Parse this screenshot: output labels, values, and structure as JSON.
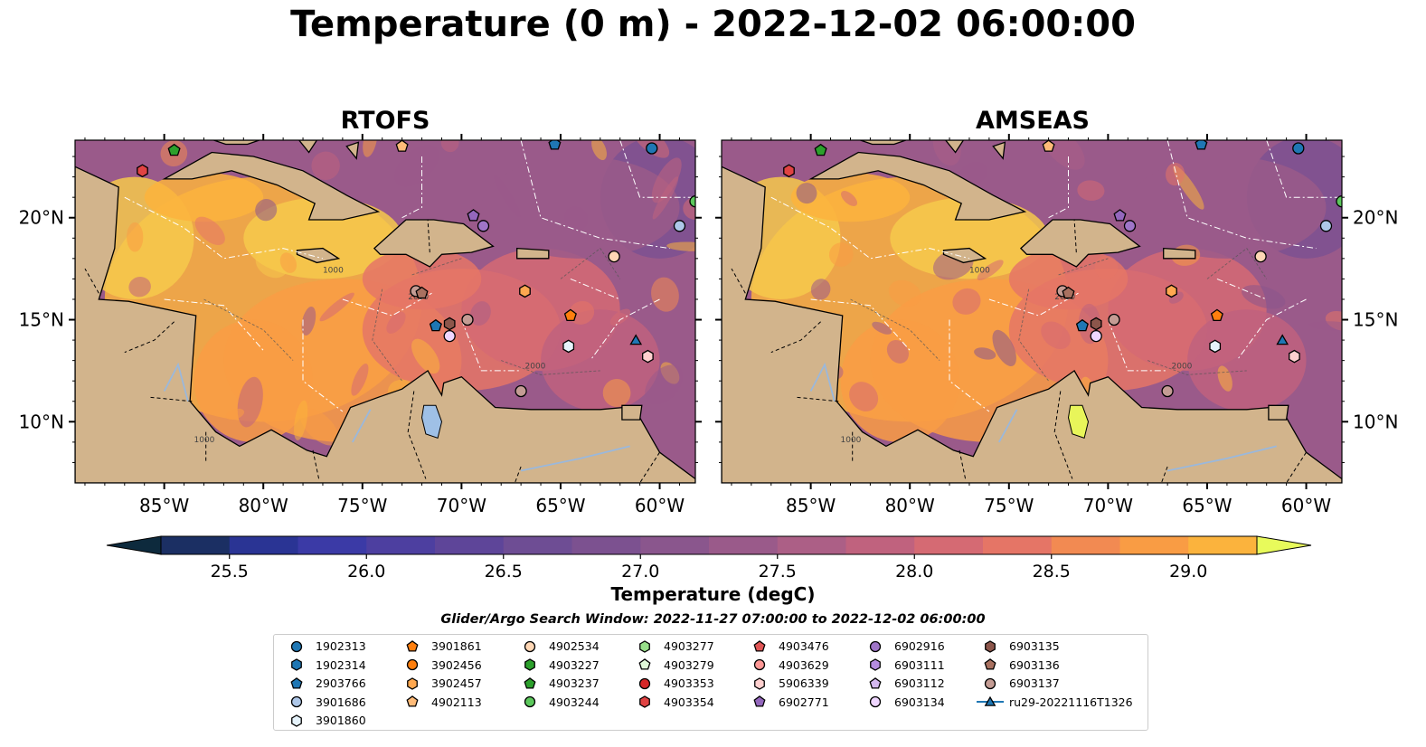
{
  "title": "Temperature (0 m) - 2022-12-02 06:00:00",
  "panels": [
    {
      "title": "RTOFS"
    },
    {
      "title": "AMSEAS"
    }
  ],
  "colorbar": {
    "label": "Temperature (degC)",
    "min": 25.25,
    "max": 29.25,
    "step": 0.25,
    "ticks": [
      "25.5",
      "26.0",
      "26.5",
      "27.0",
      "27.5",
      "28.0",
      "28.5",
      "29.0"
    ],
    "extend": "both",
    "colormap": "thermal",
    "colors": [
      "#0d2a3d",
      "#1b2f63",
      "#2a3494",
      "#3b3aa6",
      "#4d3fa0",
      "#5e4599",
      "#6e4d94",
      "#7c5190",
      "#8a568d",
      "#9a5a8a",
      "#ac5f86",
      "#c0627e",
      "#d56a73",
      "#e57566",
      "#f28a52",
      "#f99c44",
      "#fbb33d",
      "#f6c94b",
      "#eadf5c",
      "#e8fa5b"
    ]
  },
  "search_window": "Glider/Argo Search Window: 2022-11-27 07:00:00 to 2022-12-02 06:00:00",
  "chart_data": [
    {
      "type": "map",
      "title": "RTOFS",
      "variable": "Temperature (0 m)",
      "units": "degC",
      "x_ticks": [
        "85°W",
        "80°W",
        "75°W",
        "70°W",
        "65°W",
        "60°W"
      ],
      "y_ticks": [
        "20°N",
        "15°N",
        "10°N"
      ],
      "xlim": [
        -89.5,
        -58.2
      ],
      "ylim": [
        7.0,
        23.8
      ],
      "grid": false,
      "bathymetry_contour_labels": [
        "1000",
        "2000"
      ],
      "points": [
        {
          "id": "4903237",
          "lon": -84.5,
          "lat": 23.3
        },
        {
          "id": "4903354",
          "lon": -86.1,
          "lat": 22.3
        },
        {
          "id": "4902113",
          "lon": -73.0,
          "lat": 23.5
        },
        {
          "id": "2903766",
          "lon": -65.3,
          "lat": 23.6
        },
        {
          "id": "1902313",
          "lon": -60.4,
          "lat": 23.4
        },
        {
          "id": "4903244",
          "lon": -58.2,
          "lat": 20.8
        },
        {
          "id": "6902771",
          "lon": -69.4,
          "lat": 20.1
        },
        {
          "id": "6902916",
          "lon": -68.9,
          "lat": 19.6
        },
        {
          "id": "3901686",
          "lon": -59.0,
          "lat": 19.6
        },
        {
          "id": "4902534",
          "lon": -62.3,
          "lat": 18.1
        },
        {
          "id": "3902457",
          "lon": -66.8,
          "lat": 16.4
        },
        {
          "id": "6903137",
          "lon": -72.3,
          "lat": 16.4
        },
        {
          "id": "6903136",
          "lon": -72.0,
          "lat": 16.3
        },
        {
          "id": "3901861",
          "lon": -64.5,
          "lat": 15.2
        },
        {
          "id": "6903137",
          "lon": -69.7,
          "lat": 15.0
        },
        {
          "id": "6903135",
          "lon": -70.6,
          "lat": 14.8
        },
        {
          "id": "2903766",
          "lon": -71.3,
          "lat": 14.7
        },
        {
          "id": "6903134",
          "lon": -70.6,
          "lat": 14.2
        },
        {
          "id": "3901860",
          "lon": -64.6,
          "lat": 13.7
        },
        {
          "id": "5906339",
          "lon": -60.6,
          "lat": 13.2
        },
        {
          "id": "ru29-20221116T1326",
          "lon": -61.2,
          "lat": 14.0
        },
        {
          "id": "6903137",
          "lon": -67.0,
          "lat": 11.5
        }
      ]
    },
    {
      "type": "map",
      "title": "AMSEAS",
      "variable": "Temperature (0 m)",
      "units": "degC",
      "x_ticks": [
        "85°W",
        "80°W",
        "75°W",
        "70°W",
        "65°W",
        "60°W"
      ],
      "y_ticks": [
        "20°N",
        "15°N",
        "10°N"
      ],
      "xlim": [
        -89.5,
        -58.2
      ],
      "ylim": [
        7.0,
        23.8
      ],
      "grid": false,
      "bathymetry_contour_labels": [
        "1000",
        "2000"
      ],
      "points": [
        {
          "id": "4903237",
          "lon": -84.5,
          "lat": 23.3
        },
        {
          "id": "4903354",
          "lon": -86.1,
          "lat": 22.3
        },
        {
          "id": "4902113",
          "lon": -73.0,
          "lat": 23.5
        },
        {
          "id": "2903766",
          "lon": -65.3,
          "lat": 23.6
        },
        {
          "id": "1902313",
          "lon": -60.4,
          "lat": 23.4
        },
        {
          "id": "4903244",
          "lon": -58.2,
          "lat": 20.8
        },
        {
          "id": "6902771",
          "lon": -69.4,
          "lat": 20.1
        },
        {
          "id": "6902916",
          "lon": -68.9,
          "lat": 19.6
        },
        {
          "id": "3901686",
          "lon": -59.0,
          "lat": 19.6
        },
        {
          "id": "4902534",
          "lon": -62.3,
          "lat": 18.1
        },
        {
          "id": "3902457",
          "lon": -66.8,
          "lat": 16.4
        },
        {
          "id": "6903137",
          "lon": -72.3,
          "lat": 16.4
        },
        {
          "id": "6903136",
          "lon": -72.0,
          "lat": 16.3
        },
        {
          "id": "3901861",
          "lon": -64.5,
          "lat": 15.2
        },
        {
          "id": "6903137",
          "lon": -69.7,
          "lat": 15.0
        },
        {
          "id": "6903135",
          "lon": -70.6,
          "lat": 14.8
        },
        {
          "id": "2903766",
          "lon": -71.3,
          "lat": 14.7
        },
        {
          "id": "6903134",
          "lon": -70.6,
          "lat": 14.2
        },
        {
          "id": "3901860",
          "lon": -64.6,
          "lat": 13.7
        },
        {
          "id": "5906339",
          "lon": -60.6,
          "lat": 13.2
        },
        {
          "id": "ru29-20221116T1326",
          "lon": -61.2,
          "lat": 14.0
        },
        {
          "id": "6903137",
          "lon": -67.0,
          "lat": 11.5
        }
      ]
    }
  ],
  "legend": {
    "placement": "bottom-center",
    "columns": [
      [
        {
          "label": "1902313",
          "marker": "circle",
          "color": "#1f77b4"
        },
        {
          "label": "1902314",
          "marker": "hexagon",
          "color": "#1f77b4"
        },
        {
          "label": "2903766",
          "marker": "pentagon",
          "color": "#1f77b4"
        },
        {
          "label": "3901686",
          "marker": "circle",
          "color": "#aec7e8"
        },
        {
          "label": "3901860",
          "marker": "hexagon",
          "color": "#e6f3fb"
        }
      ],
      [
        {
          "label": "3901861",
          "marker": "pentagon",
          "color": "#ff7f0e"
        },
        {
          "label": "3902456",
          "marker": "circle",
          "color": "#ff7f0e"
        },
        {
          "label": "3902457",
          "marker": "hexagon",
          "color": "#ffa850"
        },
        {
          "label": "4902113",
          "marker": "pentagon",
          "color": "#ffbb78"
        }
      ],
      [
        {
          "label": "4902534",
          "marker": "circle",
          "color": "#ffd7b5"
        },
        {
          "label": "4903227",
          "marker": "hexagon",
          "color": "#2ca02c"
        },
        {
          "label": "4903237",
          "marker": "pentagon",
          "color": "#2ca02c"
        },
        {
          "label": "4903244",
          "marker": "circle",
          "color": "#5cc85c"
        }
      ],
      [
        {
          "label": "4903277",
          "marker": "hexagon",
          "color": "#98df8a"
        },
        {
          "label": "4903279",
          "marker": "pentagon",
          "color": "#e0f8d8"
        },
        {
          "label": "4903353",
          "marker": "circle",
          "color": "#d62728"
        },
        {
          "label": "4903354",
          "marker": "hexagon",
          "color": "#e04343"
        }
      ],
      [
        {
          "label": "4903476",
          "marker": "pentagon",
          "color": "#e05555"
        },
        {
          "label": "4903629",
          "marker": "circle",
          "color": "#ff9896"
        },
        {
          "label": "5906339",
          "marker": "hexagon",
          "color": "#ffd0cf"
        },
        {
          "label": "6902771",
          "marker": "pentagon",
          "color": "#9467bd"
        }
      ],
      [
        {
          "label": "6902916",
          "marker": "circle",
          "color": "#9f75c8"
        },
        {
          "label": "6903111",
          "marker": "hexagon",
          "color": "#b58ce0"
        },
        {
          "label": "6903112",
          "marker": "pentagon",
          "color": "#d4b8f0"
        },
        {
          "label": "6903134",
          "marker": "circle",
          "color": "#efd6ff"
        }
      ],
      [
        {
          "label": "6903135",
          "marker": "hexagon",
          "color": "#8c564b"
        },
        {
          "label": "6903136",
          "marker": "pentagon",
          "color": "#a97160"
        },
        {
          "label": "6903137",
          "marker": "circle",
          "color": "#c49c94"
        },
        {
          "label": "ru29-20221116T1326",
          "marker": "triangle-line",
          "color": "#1f77b4"
        }
      ]
    ]
  }
}
